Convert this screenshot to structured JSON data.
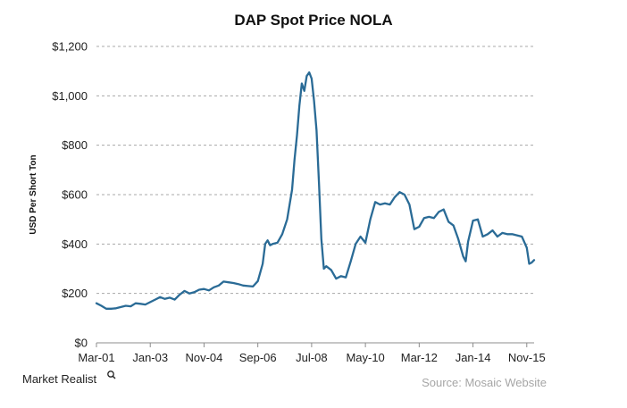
{
  "chart_data": {
    "type": "line",
    "title": "DAP Spot Price NOLA",
    "ylabel": "USD Per Short Ton",
    "xlabel": "",
    "ylim": [
      0,
      1200
    ],
    "y_ticks": [
      0,
      200,
      400,
      600,
      800,
      1000,
      1200
    ],
    "y_tick_labels": [
      "$0",
      "$200",
      "$400",
      "$600",
      "$800",
      "$1,000",
      "$1,200"
    ],
    "x_tick_labels": [
      "Mar-01",
      "Jan-03",
      "Nov-04",
      "Sep-06",
      "Jul-08",
      "May-10",
      "Mar-12",
      "Jan-14",
      "Nov-15"
    ],
    "x_tick_months": [
      0,
      22,
      44,
      66,
      88,
      110,
      132,
      154,
      176
    ],
    "x_range_months": [
      0,
      179
    ],
    "grid": true,
    "series": [
      {
        "color": "#2a6b96",
        "points": [
          [
            0,
            160
          ],
          [
            2,
            150
          ],
          [
            4,
            138
          ],
          [
            6,
            138
          ],
          [
            8,
            140
          ],
          [
            10,
            145
          ],
          [
            12,
            150
          ],
          [
            14,
            148
          ],
          [
            16,
            160
          ],
          [
            18,
            158
          ],
          [
            20,
            155
          ],
          [
            22,
            165
          ],
          [
            24,
            175
          ],
          [
            26,
            185
          ],
          [
            28,
            178
          ],
          [
            30,
            183
          ],
          [
            32,
            175
          ],
          [
            34,
            195
          ],
          [
            36,
            210
          ],
          [
            38,
            200
          ],
          [
            40,
            205
          ],
          [
            42,
            215
          ],
          [
            44,
            218
          ],
          [
            46,
            212
          ],
          [
            48,
            225
          ],
          [
            50,
            232
          ],
          [
            52,
            248
          ],
          [
            54,
            245
          ],
          [
            56,
            242
          ],
          [
            58,
            238
          ],
          [
            60,
            232
          ],
          [
            62,
            230
          ],
          [
            64,
            228
          ],
          [
            66,
            250
          ],
          [
            68,
            320
          ],
          [
            69,
            400
          ],
          [
            70,
            415
          ],
          [
            71,
            395
          ],
          [
            72,
            400
          ],
          [
            74,
            405
          ],
          [
            76,
            440
          ],
          [
            78,
            500
          ],
          [
            80,
            620
          ],
          [
            81,
            740
          ],
          [
            82,
            840
          ],
          [
            83,
            960
          ],
          [
            84,
            1050
          ],
          [
            85,
            1020
          ],
          [
            86,
            1080
          ],
          [
            87,
            1095
          ],
          [
            88,
            1070
          ],
          [
            89,
            980
          ],
          [
            90,
            860
          ],
          [
            91,
            650
          ],
          [
            92,
            420
          ],
          [
            93,
            300
          ],
          [
            94,
            310
          ],
          [
            96,
            295
          ],
          [
            98,
            260
          ],
          [
            100,
            270
          ],
          [
            102,
            265
          ],
          [
            104,
            330
          ],
          [
            106,
            400
          ],
          [
            108,
            430
          ],
          [
            110,
            405
          ],
          [
            112,
            500
          ],
          [
            114,
            570
          ],
          [
            116,
            560
          ],
          [
            118,
            565
          ],
          [
            120,
            560
          ],
          [
            122,
            590
          ],
          [
            124,
            610
          ],
          [
            126,
            600
          ],
          [
            128,
            560
          ],
          [
            130,
            460
          ],
          [
            132,
            470
          ],
          [
            134,
            505
          ],
          [
            136,
            510
          ],
          [
            138,
            505
          ],
          [
            140,
            530
          ],
          [
            142,
            540
          ],
          [
            144,
            490
          ],
          [
            146,
            475
          ],
          [
            148,
            420
          ],
          [
            150,
            350
          ],
          [
            151,
            330
          ],
          [
            152,
            410
          ],
          [
            154,
            495
          ],
          [
            156,
            500
          ],
          [
            158,
            430
          ],
          [
            160,
            440
          ],
          [
            162,
            455
          ],
          [
            164,
            430
          ],
          [
            166,
            445
          ],
          [
            168,
            440
          ],
          [
            170,
            440
          ],
          [
            172,
            435
          ],
          [
            174,
            430
          ],
          [
            176,
            385
          ],
          [
            177,
            320
          ],
          [
            178,
            325
          ],
          [
            179,
            335
          ]
        ]
      }
    ]
  },
  "footer": {
    "brand": "Market Realist",
    "source": "Source: Mosaic Website"
  },
  "colors": {
    "line": "#2a6b96",
    "grid": "#a8a8a8",
    "text": "#222222",
    "source_text": "#a6a6a6"
  }
}
